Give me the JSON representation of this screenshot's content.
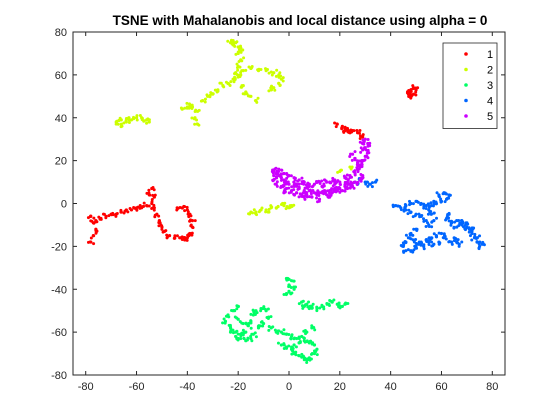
{
  "chart_data": {
    "type": "scatter",
    "title": "TSNE with Mahalanobis and local distance using alpha = 0",
    "xlabel": "",
    "ylabel": "",
    "xlim": [
      -85,
      85
    ],
    "ylim": [
      -80,
      80
    ],
    "xticks": [
      -80,
      -60,
      -40,
      -20,
      0,
      20,
      40,
      60,
      80
    ],
    "yticks": [
      -80,
      -60,
      -40,
      -20,
      0,
      20,
      40,
      60,
      80
    ],
    "grid": false,
    "legend_position": "top-right",
    "series": [
      {
        "name": "1",
        "color": "#ff0000",
        "points": [
          [
            -78,
            -6
          ],
          [
            -77,
            -9
          ],
          [
            -76,
            -12
          ],
          [
            -77,
            -15
          ],
          [
            -78,
            -18
          ],
          [
            -76,
            -8
          ],
          [
            -74,
            -7
          ],
          [
            -72,
            -6
          ],
          [
            -70,
            -5
          ],
          [
            -68,
            -5
          ],
          [
            -66,
            -4
          ],
          [
            -64,
            -3
          ],
          [
            -62,
            -3
          ],
          [
            -60,
            -2
          ],
          [
            -58,
            -2
          ],
          [
            -56,
            -1
          ],
          [
            -55,
            4
          ],
          [
            -54,
            7
          ],
          [
            -53,
            3
          ],
          [
            -54,
            0
          ],
          [
            -53,
            -2
          ],
          [
            -52,
            -5
          ],
          [
            -51,
            -8
          ],
          [
            -50,
            -11
          ],
          [
            -49,
            -13
          ],
          [
            -47,
            -15
          ],
          [
            -45,
            -16
          ],
          [
            -43,
            -16
          ],
          [
            -41,
            -17
          ],
          [
            -40,
            -16
          ],
          [
            -44,
            -2
          ],
          [
            -42,
            -2
          ],
          [
            -40,
            -3
          ],
          [
            -39,
            -5
          ],
          [
            -38,
            -8
          ],
          [
            -38,
            -11
          ],
          [
            -39,
            -14
          ],
          [
            -41,
            -16
          ],
          [
            19,
            37
          ],
          [
            21,
            36
          ],
          [
            23,
            35
          ],
          [
            25,
            34
          ],
          [
            27,
            33
          ],
          [
            29,
            31
          ],
          [
            22,
            34
          ],
          [
            24,
            33
          ],
          [
            47,
            52
          ],
          [
            48,
            53
          ],
          [
            49,
            54
          ],
          [
            50,
            53
          ],
          [
            49,
            51
          ],
          [
            47,
            51
          ],
          [
            48,
            50
          ]
        ]
      },
      {
        "name": "2",
        "color": "#ccff00",
        "points": [
          [
            -68,
            38
          ],
          [
            -66,
            37
          ],
          [
            -64,
            38
          ],
          [
            -62,
            39
          ],
          [
            -60,
            40
          ],
          [
            -58,
            40
          ],
          [
            -56,
            39
          ],
          [
            -55,
            38
          ],
          [
            -63,
            40
          ],
          [
            -66,
            39
          ],
          [
            -42,
            44
          ],
          [
            -40,
            45
          ],
          [
            -38,
            45
          ],
          [
            -36,
            43
          ],
          [
            -37,
            40
          ],
          [
            -36,
            37
          ],
          [
            -39,
            46
          ],
          [
            -34,
            48
          ],
          [
            -32,
            50
          ],
          [
            -30,
            51
          ],
          [
            -28,
            53
          ],
          [
            -26,
            55
          ],
          [
            -24,
            56
          ],
          [
            -22,
            58
          ],
          [
            -20,
            59
          ],
          [
            -22,
            76
          ],
          [
            -21,
            75
          ],
          [
            -20,
            73
          ],
          [
            -20,
            70
          ],
          [
            -19,
            67
          ],
          [
            -20,
            64
          ],
          [
            -21,
            61
          ],
          [
            -22,
            74
          ],
          [
            -19,
            71
          ],
          [
            -23,
            75
          ],
          [
            -19,
            60
          ],
          [
            -18,
            55
          ],
          [
            -17,
            52
          ],
          [
            -15,
            50
          ],
          [
            -13,
            48
          ],
          [
            -18,
            62
          ],
          [
            -15,
            63
          ],
          [
            -12,
            62
          ],
          [
            -9,
            62
          ],
          [
            -6,
            61
          ],
          [
            -4,
            60
          ],
          [
            -3,
            58
          ],
          [
            -4,
            56
          ],
          [
            -6,
            54
          ],
          [
            -7,
            53
          ],
          [
            -15,
            -4
          ],
          [
            -13,
            -4
          ],
          [
            -11,
            -3
          ],
          [
            -9,
            -3
          ],
          [
            -7,
            -2
          ],
          [
            -5,
            -2
          ],
          [
            -2,
            -1
          ],
          [
            0,
            -2
          ],
          [
            1,
            -1
          ],
          [
            20,
            15
          ],
          [
            24,
            17
          ]
        ]
      },
      {
        "name": "3",
        "color": "#00ff66",
        "points": [
          [
            -1,
            -35
          ],
          [
            1,
            -36
          ],
          [
            0,
            -38
          ],
          [
            2,
            -40
          ],
          [
            0,
            -41
          ],
          [
            -1,
            -42
          ],
          [
            -20,
            -48
          ],
          [
            -22,
            -50
          ],
          [
            -24,
            -52
          ],
          [
            -25,
            -55
          ],
          [
            -23,
            -58
          ],
          [
            -21,
            -60
          ],
          [
            -19,
            -61
          ],
          [
            -17,
            -60
          ],
          [
            -16,
            -57
          ],
          [
            -15,
            -55
          ],
          [
            -14,
            -52
          ],
          [
            -13,
            -50
          ],
          [
            -11,
            -49
          ],
          [
            -9,
            -50
          ],
          [
            -8,
            -53
          ],
          [
            -10,
            -56
          ],
          [
            -12,
            -58
          ],
          [
            -14,
            -61
          ],
          [
            -15,
            -63
          ],
          [
            -17,
            -64
          ],
          [
            -19,
            -63
          ],
          [
            -21,
            -62
          ],
          [
            -23,
            -60
          ],
          [
            -18,
            -56
          ],
          [
            -20,
            -54
          ],
          [
            -7,
            -58
          ],
          [
            -5,
            -60
          ],
          [
            -3,
            -60
          ],
          [
            -1,
            -61
          ],
          [
            1,
            -62
          ],
          [
            3,
            -63
          ],
          [
            5,
            -62
          ],
          [
            7,
            -60
          ],
          [
            9,
            -58
          ],
          [
            -3,
            -66
          ],
          [
            -1,
            -67
          ],
          [
            1,
            -68
          ],
          [
            2,
            -70
          ],
          [
            4,
            -71
          ],
          [
            6,
            -72
          ],
          [
            7,
            -73
          ],
          [
            8,
            -72
          ],
          [
            10,
            -70
          ],
          [
            11,
            -68
          ],
          [
            10,
            -66
          ],
          [
            8,
            -65
          ],
          [
            6,
            -64
          ],
          [
            4,
            -65
          ],
          [
            2,
            -66
          ],
          [
            5,
            -46
          ],
          [
            7,
            -47
          ],
          [
            9,
            -48
          ],
          [
            11,
            -49
          ],
          [
            13,
            -48
          ],
          [
            15,
            -47
          ],
          [
            17,
            -46
          ],
          [
            19,
            -47
          ],
          [
            21,
            -48
          ],
          [
            22,
            -47
          ],
          [
            8,
            -49
          ],
          [
            6,
            -48
          ]
        ]
      },
      {
        "name": "4",
        "color": "#0066ff",
        "points": [
          [
            42,
            -1
          ],
          [
            44,
            -2
          ],
          [
            46,
            -3
          ],
          [
            48,
            -4
          ],
          [
            50,
            -5
          ],
          [
            52,
            -6
          ],
          [
            54,
            -8
          ],
          [
            55,
            -10
          ],
          [
            57,
            -8
          ],
          [
            56,
            -5
          ],
          [
            55,
            -3
          ],
          [
            56,
            -1
          ],
          [
            57,
            1
          ],
          [
            59,
            4
          ],
          [
            61,
            5
          ],
          [
            63,
            4
          ],
          [
            62,
            2
          ],
          [
            60,
            1
          ],
          [
            58,
            0
          ],
          [
            54,
            -1
          ],
          [
            52,
            0
          ],
          [
            50,
            1
          ],
          [
            48,
            0
          ],
          [
            46,
            -1
          ],
          [
            50,
            -12
          ],
          [
            48,
            -14
          ],
          [
            47,
            -16
          ],
          [
            46,
            -18
          ],
          [
            45,
            -20
          ],
          [
            46,
            -22
          ],
          [
            48,
            -22
          ],
          [
            50,
            -20
          ],
          [
            52,
            -18
          ],
          [
            54,
            -17
          ],
          [
            56,
            -16
          ],
          [
            58,
            -15
          ],
          [
            60,
            -14
          ],
          [
            61,
            -16
          ],
          [
            59,
            -18
          ],
          [
            57,
            -19
          ],
          [
            55,
            -18
          ],
          [
            53,
            -20
          ],
          [
            51,
            -19
          ],
          [
            49,
            -17
          ],
          [
            64,
            -9
          ],
          [
            66,
            -8
          ],
          [
            68,
            -8
          ],
          [
            70,
            -9
          ],
          [
            71,
            -12
          ],
          [
            72,
            -14
          ],
          [
            73,
            -16
          ],
          [
            74,
            -18
          ],
          [
            75,
            -20
          ],
          [
            76,
            -19
          ],
          [
            74,
            -16
          ],
          [
            72,
            -12
          ],
          [
            70,
            -11
          ],
          [
            68,
            -10
          ],
          [
            66,
            -11
          ],
          [
            65,
            -16
          ],
          [
            66,
            -18
          ],
          [
            67,
            -19
          ],
          [
            64,
            -18
          ],
          [
            63,
            -5
          ],
          [
            62,
            -7
          ],
          [
            28,
            11
          ],
          [
            30,
            10
          ],
          [
            32,
            9
          ],
          [
            34,
            10
          ],
          [
            26,
            10
          ]
        ]
      },
      {
        "name": "5",
        "color": "#cc00ff",
        "points": [
          [
            -6,
            15
          ],
          [
            -5,
            14
          ],
          [
            -4,
            13
          ],
          [
            -3,
            12
          ],
          [
            -2,
            11
          ],
          [
            -1,
            10
          ],
          [
            0,
            9
          ],
          [
            2,
            8
          ],
          [
            4,
            7
          ],
          [
            6,
            6
          ],
          [
            8,
            6
          ],
          [
            10,
            5
          ],
          [
            12,
            5
          ],
          [
            14,
            6
          ],
          [
            16,
            6
          ],
          [
            18,
            7
          ],
          [
            20,
            7
          ],
          [
            22,
            8
          ],
          [
            24,
            9
          ],
          [
            26,
            10
          ],
          [
            28,
            11
          ],
          [
            29,
            13
          ],
          [
            -6,
            11
          ],
          [
            -5,
            9
          ],
          [
            -3,
            8
          ],
          [
            -1,
            7
          ],
          [
            1,
            6
          ],
          [
            3,
            5
          ],
          [
            5,
            4
          ],
          [
            7,
            4
          ],
          [
            9,
            3
          ],
          [
            11,
            4
          ],
          [
            13,
            5
          ],
          [
            15,
            4
          ],
          [
            17,
            5
          ],
          [
            19,
            6
          ],
          [
            21,
            6
          ],
          [
            23,
            7
          ],
          [
            25,
            8
          ],
          [
            -4,
            16
          ],
          [
            -2,
            14
          ],
          [
            0,
            13
          ],
          [
            2,
            12
          ],
          [
            4,
            11
          ],
          [
            6,
            10
          ],
          [
            8,
            9
          ],
          [
            10,
            9
          ],
          [
            12,
            10
          ],
          [
            14,
            11
          ],
          [
            16,
            10
          ],
          [
            18,
            9
          ],
          [
            20,
            10
          ],
          [
            22,
            12
          ],
          [
            24,
            13
          ],
          [
            26,
            14
          ],
          [
            27,
            16
          ],
          [
            28,
            18
          ],
          [
            29,
            20
          ],
          [
            30,
            22
          ],
          [
            31,
            24
          ],
          [
            30,
            26
          ],
          [
            29,
            28
          ],
          [
            30,
            30
          ],
          [
            28,
            17
          ],
          [
            27,
            19
          ],
          [
            26,
            21
          ],
          [
            25,
            23
          ],
          [
            29,
            25
          ],
          [
            31,
            28
          ],
          [
            -6,
            13
          ],
          [
            3,
            9
          ],
          [
            8,
            8
          ],
          [
            13,
            8
          ],
          [
            18,
            11
          ],
          [
            23,
            10
          ],
          [
            -2,
            5
          ],
          [
            6,
            3
          ],
          [
            12,
            2
          ],
          [
            16,
            3
          ]
        ]
      }
    ]
  }
}
